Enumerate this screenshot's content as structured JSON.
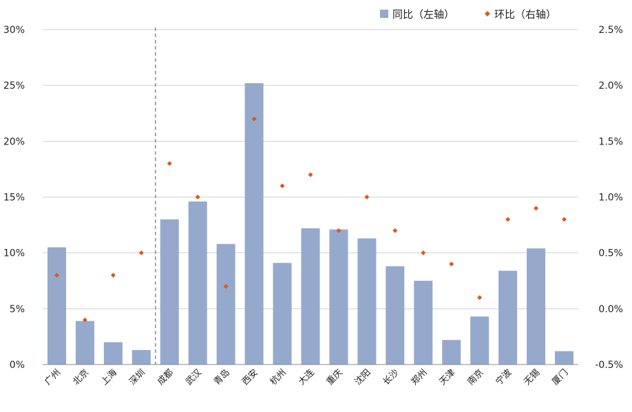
{
  "chart_data": {
    "type": "bar",
    "categories": [
      "广州",
      "北京",
      "上海",
      "深圳",
      "成都",
      "武汉",
      "青岛",
      "西安",
      "杭州",
      "大连",
      "重庆",
      "沈阳",
      "长沙",
      "郑州",
      "天津",
      "南京",
      "宁波",
      "无锡",
      "厦门"
    ],
    "series": [
      {
        "name": "同比（左轴）",
        "type": "bar",
        "axis": "left",
        "color": "#95a9cc",
        "values": [
          10.5,
          3.9,
          2.0,
          1.3,
          13.0,
          14.6,
          10.8,
          25.2,
          9.1,
          12.2,
          12.1,
          11.3,
          8.8,
          7.5,
          2.2,
          4.3,
          8.4,
          10.4,
          1.2
        ]
      },
      {
        "name": "环比（右轴）",
        "type": "scatter",
        "axis": "right",
        "color": "#d75b1f",
        "values": [
          0.3,
          -0.1,
          0.3,
          0.5,
          1.3,
          1.0,
          0.2,
          1.7,
          1.1,
          1.2,
          0.7,
          1.0,
          0.7,
          0.5,
          0.4,
          0.1,
          0.8,
          0.9,
          0.8
        ]
      }
    ],
    "y_left": {
      "range": [
        0,
        30
      ],
      "ticks": [
        "0%",
        "5%",
        "10%",
        "15%",
        "20%",
        "25%",
        "30%"
      ]
    },
    "y_right": {
      "range": [
        -0.5,
        2.5
      ],
      "ticks": [
        "-0.5%",
        "0.0%",
        "0.5%",
        "1.0%",
        "1.5%",
        "2.0%",
        "2.5%"
      ]
    },
    "divider_after_category": "深圳",
    "grid": true,
    "legend_position": "top-right"
  }
}
